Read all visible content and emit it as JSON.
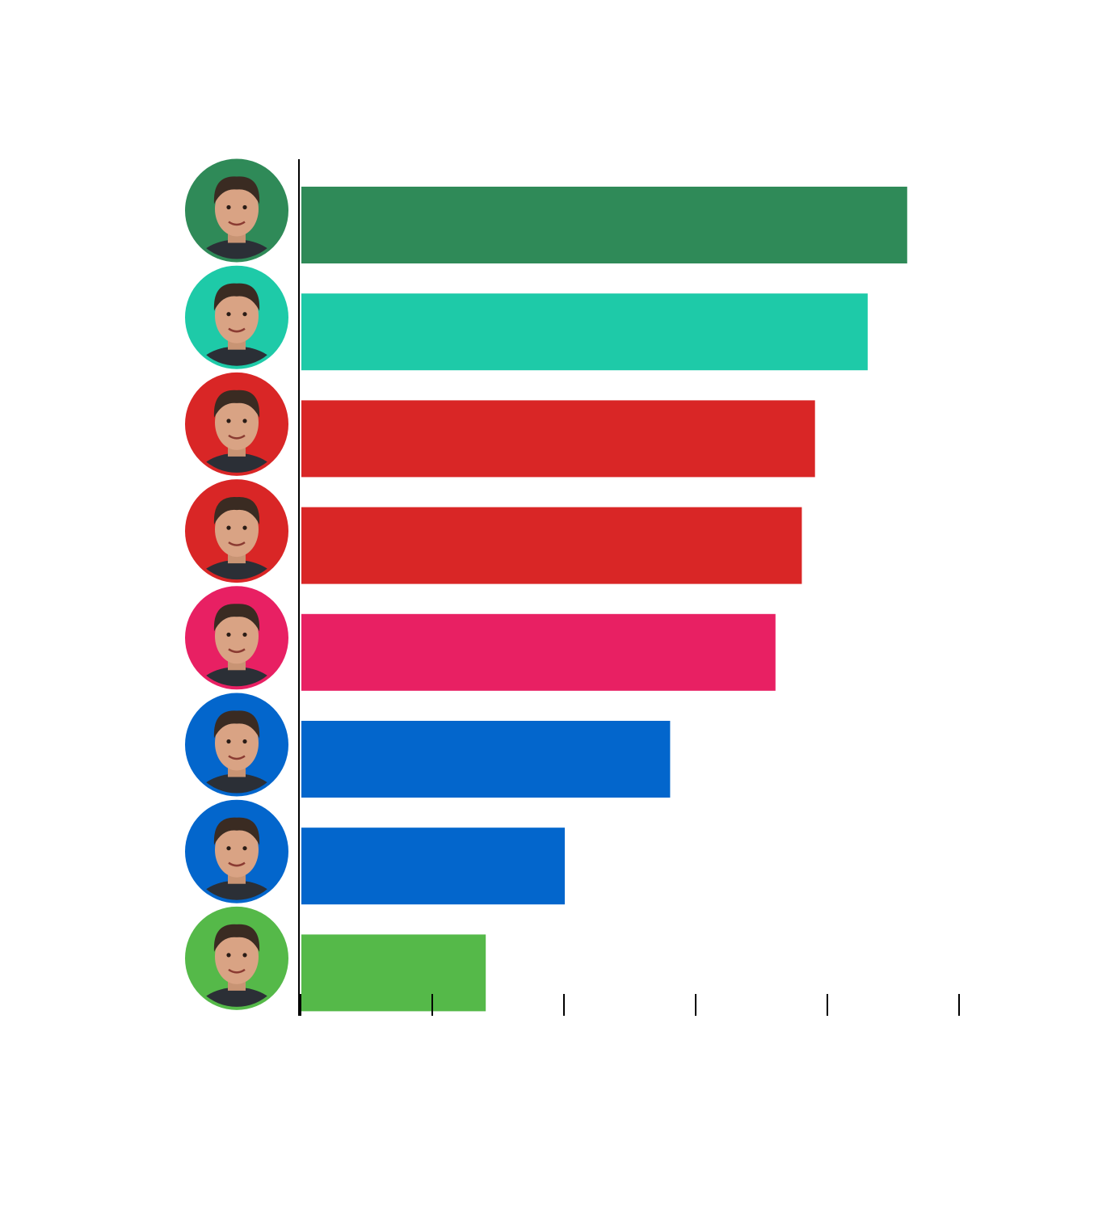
{
  "chart_data": {
    "type": "bar",
    "orientation": "horizontal",
    "title": "",
    "xlabel": "",
    "ylabel": "",
    "xlim": [
      0,
      5
    ],
    "grid": false,
    "legend": "none",
    "categories": [
      "avatar-1",
      "avatar-2",
      "avatar-3",
      "avatar-4",
      "avatar-5",
      "avatar-6",
      "avatar-7",
      "avatar-8"
    ],
    "values": [
      4.6,
      4.3,
      3.9,
      3.8,
      3.6,
      2.8,
      2.0,
      1.4
    ],
    "colors": [
      "#2f8a58",
      "#1ecaa8",
      "#d92626",
      "#d92626",
      "#e82063",
      "#0366cc",
      "#0366cc",
      "#55b949"
    ],
    "avatar_icons": [
      "person-photo-icon",
      "person-photo-icon",
      "person-photo-icon",
      "person-photo-icon",
      "person-photo-icon",
      "person-photo-icon",
      "person-photo-icon",
      "person-photo-icon"
    ],
    "x_ticks": [
      0,
      1,
      2,
      3,
      4,
      5
    ]
  }
}
